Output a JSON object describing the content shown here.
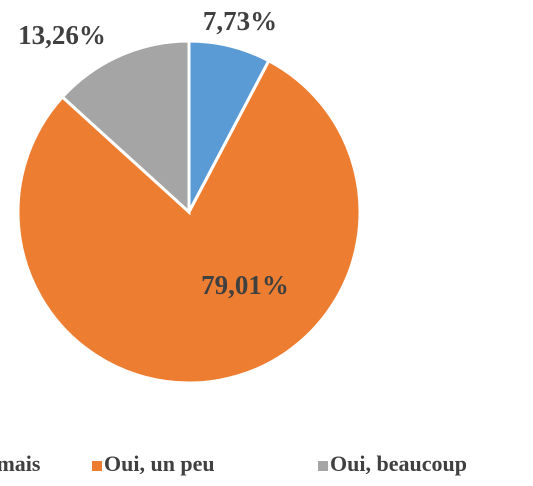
{
  "chart_data": {
    "type": "pie",
    "categories": [
      "Non, jamais",
      "Oui, un peu",
      "Oui, beaucoup"
    ],
    "values": [
      7.73,
      79.01,
      13.26
    ],
    "value_labels": [
      "7,73%",
      "79,01%",
      "13,26%"
    ],
    "colors": [
      "#5b9bd5",
      "#ed7d31",
      "#a5a5a5"
    ],
    "legend": "bottom"
  }
}
